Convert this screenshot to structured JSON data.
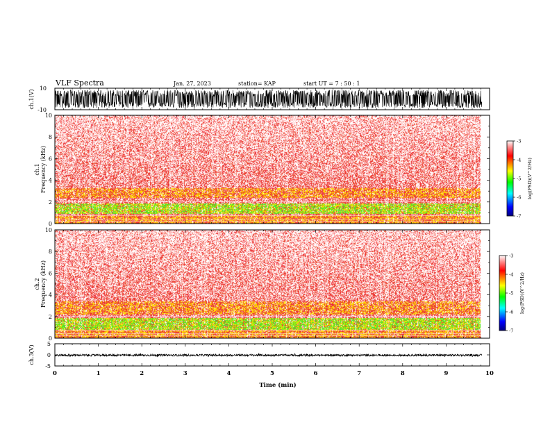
{
  "header": {
    "title": "VLF Spectra",
    "date": "Jan. 27, 2023",
    "station": "station= KAP",
    "start": "start  UT  =   7 : 50 : 1"
  },
  "colors": {
    "spectrogram_base": "#ee2222",
    "high_power_band": "#f0e000",
    "very_high_power": "#33dd33",
    "trace": "#000000",
    "colormap": [
      "#000080",
      "#0000ff",
      "#00ffff",
      "#00ff00",
      "#ffff00",
      "#ff8000",
      "#ff0000",
      "#ff8080",
      "#ffffff"
    ]
  },
  "chart_data": [
    {
      "type": "line",
      "panel": "ch1-waveform",
      "ylabel": "ch.1(V)",
      "ylim": [
        -10,
        10
      ],
      "yticklabels": [
        "10",
        "-10"
      ],
      "xlim": [
        0,
        10
      ],
      "xmax_data": 9.82,
      "envelope": [
        -8,
        8
      ]
    },
    {
      "type": "heatmap",
      "panel": "ch1-spectrogram",
      "ylabel": "ch.1\nFrequency (kHz)",
      "ylim": [
        0,
        10
      ],
      "yticklabels": [
        "0",
        "2",
        "4",
        "6",
        "8",
        "10"
      ],
      "xlim": [
        0,
        10
      ],
      "xmax_data": 9.82,
      "bands_khz": [
        {
          "from": 0.0,
          "to": 0.8,
          "level": "high"
        },
        {
          "from": 0.9,
          "to": 1.9,
          "level": "very_high"
        },
        {
          "from": 2.4,
          "to": 3.3,
          "level": "high"
        }
      ],
      "colorbar": {
        "label": "log(PSD)(V^2/Hz)",
        "range": [
          -7,
          -3
        ],
        "ticklabels": [
          "-3",
          "-4",
          "-5",
          "-6",
          "-7"
        ]
      }
    },
    {
      "type": "heatmap",
      "panel": "ch2-spectrogram",
      "ylabel": "ch.2\nFrequency (kHz)",
      "ylim": [
        0,
        10
      ],
      "yticklabels": [
        "0",
        "2",
        "4",
        "6",
        "8",
        "10"
      ],
      "xlim": [
        0,
        10
      ],
      "xmax_data": 9.82,
      "bands_khz": [
        {
          "from": 0.0,
          "to": 0.8,
          "level": "high"
        },
        {
          "from": 0.8,
          "to": 1.9,
          "level": "very_high"
        },
        {
          "from": 2.2,
          "to": 3.4,
          "level": "high"
        }
      ],
      "colorbar": {
        "label": "log(PSD)(V^2/Hz)",
        "range": [
          -7,
          -3
        ],
        "ticklabels": [
          "-3",
          "-4",
          "-5",
          "-6",
          "-7"
        ]
      }
    },
    {
      "type": "line",
      "panel": "ch3-waveform",
      "ylabel": "ch.3(V)",
      "ylim": [
        -5,
        5
      ],
      "yticklabels": [
        "5",
        "0",
        "-5"
      ],
      "xlim": [
        0,
        10
      ],
      "xmax_data": 9.82,
      "envelope": [
        -0.6,
        0.3
      ]
    }
  ],
  "xaxis": {
    "label": "Time  (min)",
    "ticklabels": [
      "0",
      "1",
      "2",
      "3",
      "4",
      "5",
      "6",
      "7",
      "8",
      "9",
      "10"
    ]
  }
}
